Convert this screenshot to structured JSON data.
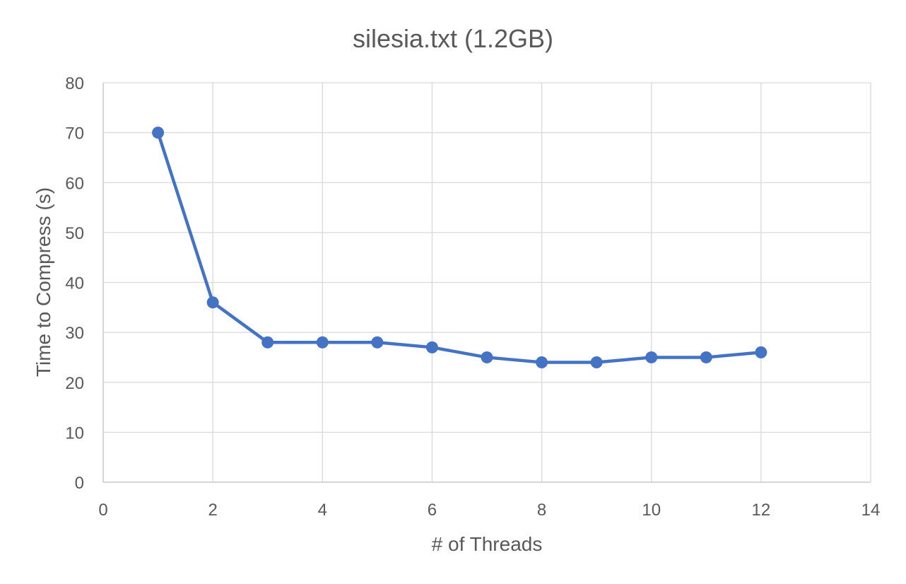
{
  "chart_data": {
    "type": "scatter",
    "title": "silesia.txt (1.2GB)",
    "xlabel": "# of Threads",
    "ylabel": "Time to Compress (s)",
    "xlim": [
      0,
      14
    ],
    "ylim": [
      0,
      80
    ],
    "x_ticks": [
      0,
      2,
      4,
      6,
      8,
      10,
      12,
      14
    ],
    "y_ticks": [
      0,
      10,
      20,
      30,
      40,
      50,
      60,
      70,
      80
    ],
    "grid": true,
    "legend": "none",
    "series": [
      {
        "color": "#4472c4",
        "mode": "lines+markers",
        "points": [
          {
            "x": 1,
            "y": 70
          },
          {
            "x": 2,
            "y": 36
          },
          {
            "x": 3,
            "y": 28
          },
          {
            "x": 4,
            "y": 28
          },
          {
            "x": 5,
            "y": 28
          },
          {
            "x": 6,
            "y": 27
          },
          {
            "x": 7,
            "y": 25
          },
          {
            "x": 8,
            "y": 24
          },
          {
            "x": 9,
            "y": 24
          },
          {
            "x": 10,
            "y": 25
          },
          {
            "x": 11,
            "y": 25
          },
          {
            "x": 12,
            "y": 26
          }
        ]
      }
    ]
  }
}
